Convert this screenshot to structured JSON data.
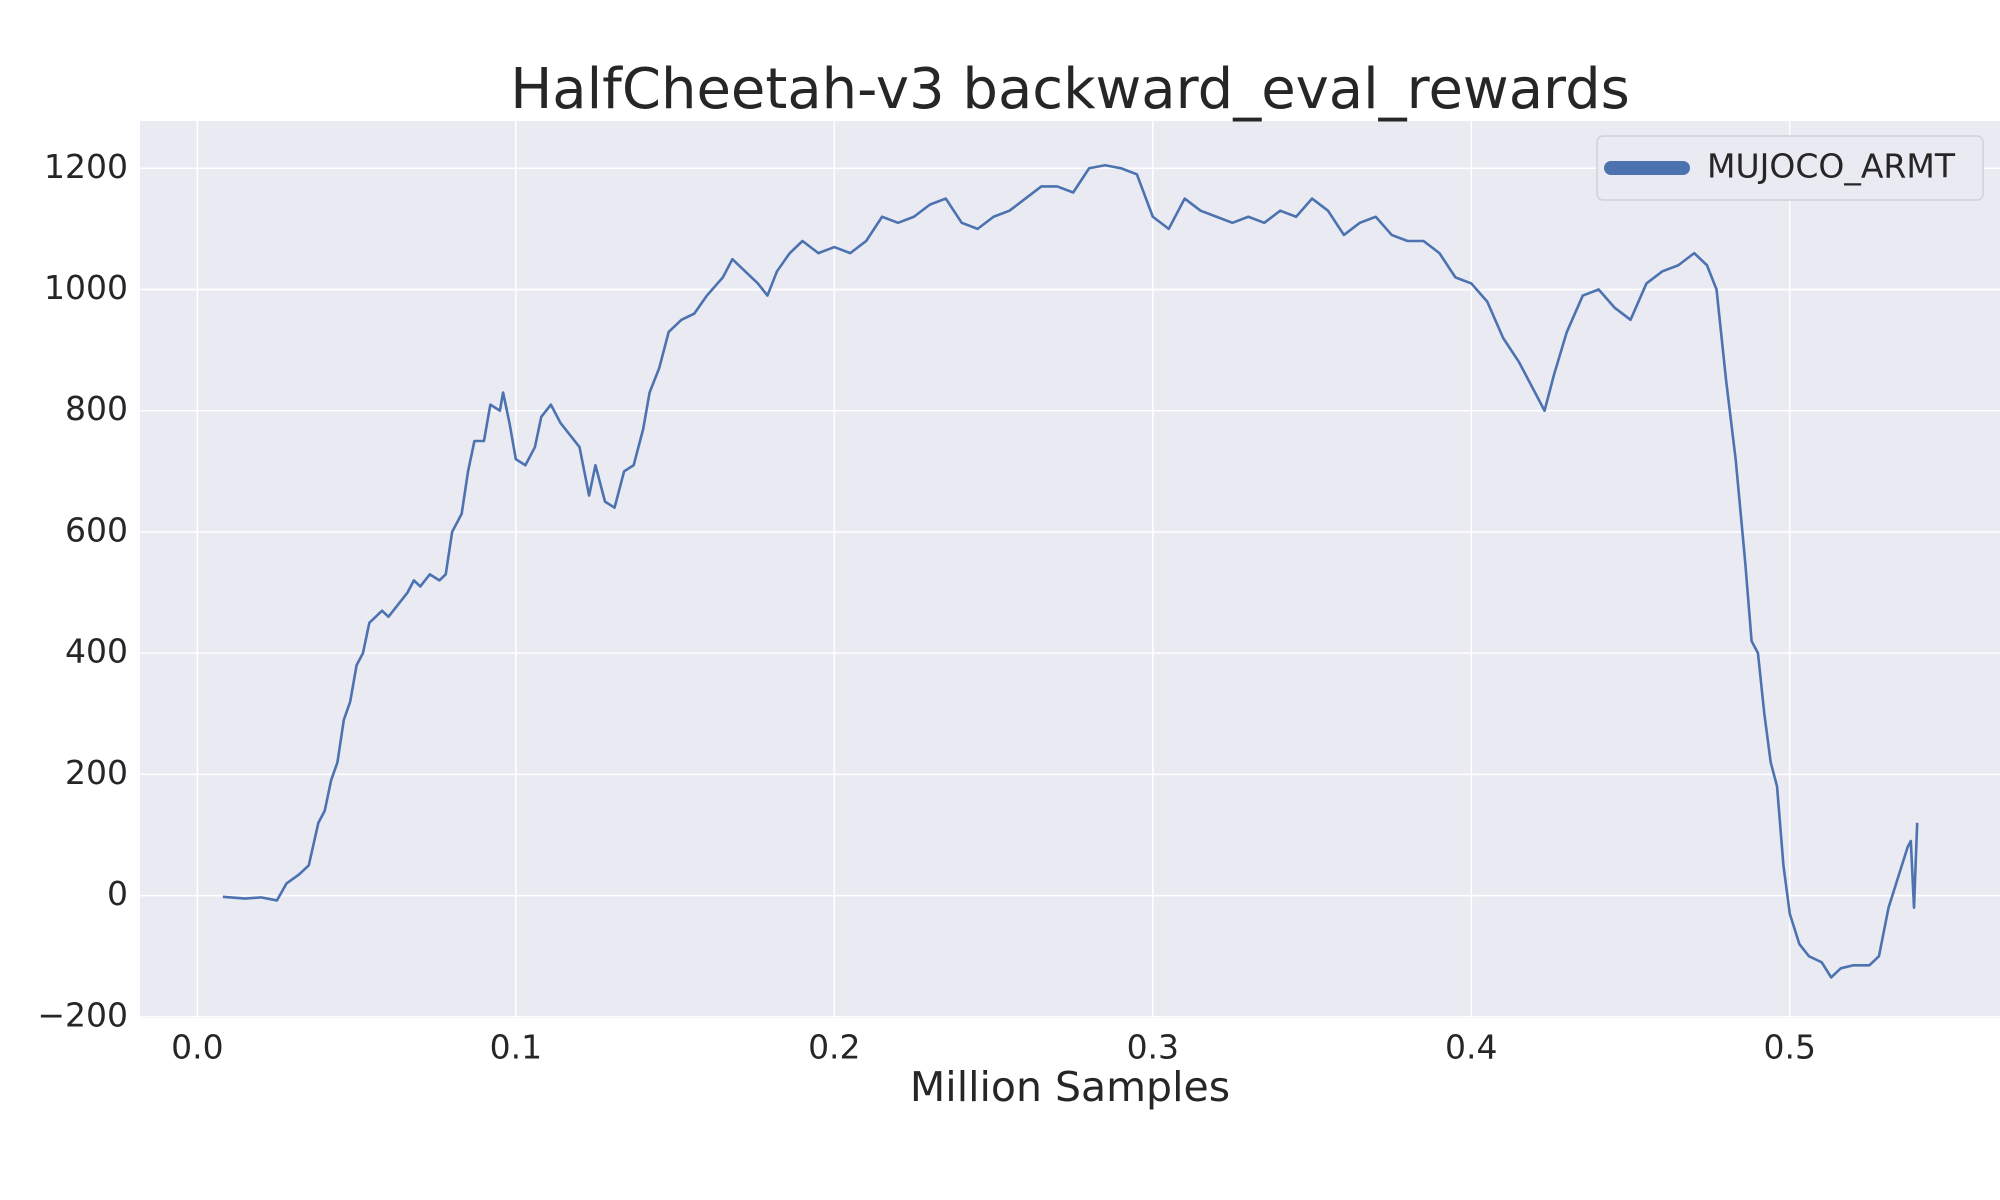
{
  "chart_data": {
    "type": "line",
    "title": "HalfCheetah-v3 backward_eval_rewards",
    "x_label": "Million Samples",
    "xlim": [
      -0.018,
      0.566
    ],
    "ylim": [
      -202,
      1278
    ],
    "xticks": [
      {
        "value": 0,
        "label": "0.0"
      },
      0.1,
      0.2,
      0.3,
      0.4,
      0.5
    ],
    "yticks": [
      {
        "value": -200,
        "label": "−200"
      },
      0,
      200,
      400,
      600,
      800,
      1000,
      1200
    ],
    "grid": true,
    "legend": "upper right",
    "x": [
      0.008,
      0.015,
      0.02,
      0.025,
      0.028,
      0.032,
      0.035,
      0.038,
      0.04,
      0.042,
      0.044,
      0.046,
      0.048,
      0.05,
      0.052,
      0.054,
      0.056,
      0.058,
      0.06,
      0.063,
      0.066,
      0.068,
      0.07,
      0.073,
      0.076,
      0.078,
      0.08,
      0.083,
      0.085,
      0.087,
      0.09,
      0.092,
      0.095,
      0.096,
      0.098,
      0.1,
      0.103,
      0.106,
      0.108,
      0.111,
      0.114,
      0.117,
      0.12,
      0.123,
      0.125,
      0.128,
      0.131,
      0.134,
      0.137,
      0.14,
      0.142,
      0.145,
      0.148,
      0.152,
      0.156,
      0.16,
      0.165,
      0.168,
      0.172,
      0.176,
      0.179,
      0.182,
      0.186,
      0.19,
      0.195,
      0.2,
      0.205,
      0.21,
      0.215,
      0.22,
      0.225,
      0.23,
      0.235,
      0.24,
      0.245,
      0.25,
      0.255,
      0.26,
      0.265,
      0.27,
      0.275,
      0.28,
      0.285,
      0.29,
      0.295,
      0.3,
      0.305,
      0.31,
      0.315,
      0.32,
      0.325,
      0.33,
      0.335,
      0.34,
      0.345,
      0.35,
      0.355,
      0.36,
      0.365,
      0.37,
      0.375,
      0.38,
      0.385,
      0.39,
      0.395,
      0.4,
      0.405,
      0.41,
      0.415,
      0.42,
      0.423,
      0.426,
      0.43,
      0.435,
      0.44,
      0.445,
      0.45,
      0.455,
      0.46,
      0.465,
      0.47,
      0.474,
      0.477,
      0.48,
      0.483,
      0.486,
      0.488,
      0.49,
      0.492,
      0.494,
      0.496,
      0.498,
      0.5,
      0.503,
      0.506,
      0.51,
      0.513,
      0.516,
      0.52,
      0.525,
      0.528,
      0.531,
      0.534,
      0.537,
      0.538,
      0.539,
      0.54
    ],
    "series": [
      {
        "name": "MUJOCO_ARMT",
        "color": "#4c72b0",
        "values": [
          -2,
          -5,
          -3,
          -8,
          20,
          35,
          50,
          120,
          140,
          190,
          220,
          290,
          320,
          380,
          400,
          450,
          460,
          470,
          460,
          480,
          500,
          520,
          510,
          530,
          520,
          530,
          600,
          630,
          700,
          750,
          750,
          810,
          800,
          830,
          780,
          720,
          710,
          740,
          790,
          810,
          780,
          760,
          740,
          660,
          710,
          650,
          640,
          700,
          710,
          770,
          830,
          870,
          930,
          950,
          960,
          990,
          1020,
          1050,
          1030,
          1010,
          990,
          1030,
          1060,
          1080,
          1060,
          1070,
          1060,
          1080,
          1120,
          1110,
          1120,
          1140,
          1150,
          1110,
          1100,
          1120,
          1130,
          1150,
          1170,
          1170,
          1160,
          1200,
          1205,
          1200,
          1190,
          1120,
          1100,
          1150,
          1130,
          1120,
          1110,
          1120,
          1110,
          1130,
          1120,
          1150,
          1130,
          1090,
          1110,
          1120,
          1090,
          1080,
          1080,
          1060,
          1020,
          1010,
          980,
          920,
          880,
          830,
          800,
          860,
          930,
          990,
          1000,
          970,
          950,
          1010,
          1030,
          1040,
          1060,
          1040,
          1000,
          850,
          720,
          550,
          420,
          400,
          300,
          220,
          180,
          50,
          -30,
          -80,
          -100,
          -110,
          -135,
          -120,
          -115,
          -115,
          -100,
          -20,
          30,
          80,
          90,
          -20,
          120
        ]
      }
    ]
  }
}
